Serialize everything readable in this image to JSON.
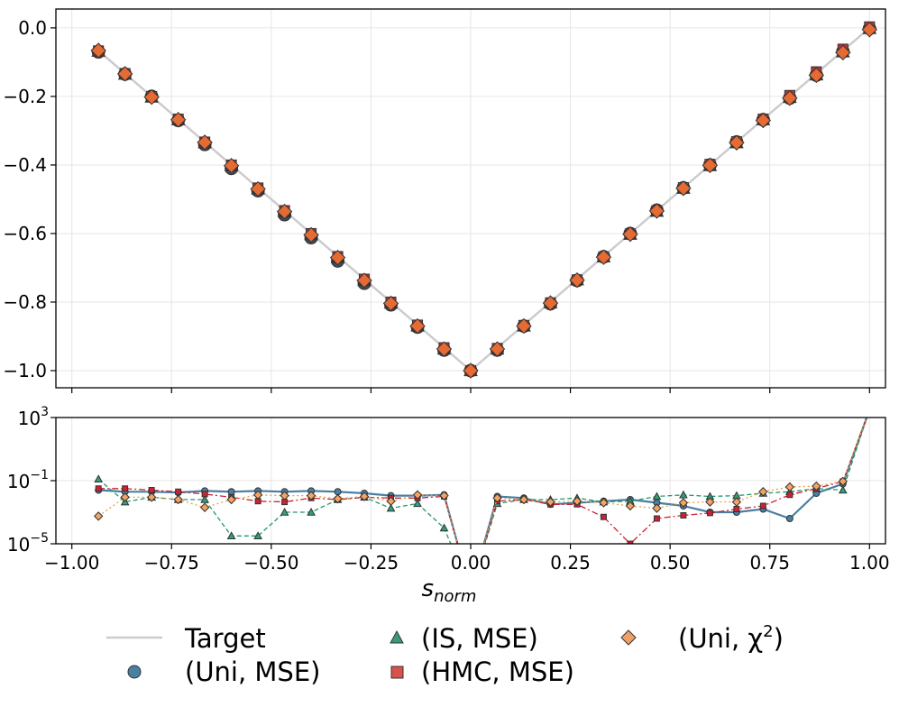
{
  "chart_data": [
    {
      "type": "line",
      "panel": "main",
      "xlim": [
        -1.04,
        1.04
      ],
      "ylim": [
        -1.05,
        0.055
      ],
      "yticks": [
        0.0,
        -0.2,
        -0.4,
        -0.6,
        -0.8,
        -1.0
      ],
      "ytick_labels": [
        "0.0",
        "−0.2",
        "−0.4",
        "−0.6",
        "−0.8",
        "−1.0"
      ],
      "grid": true,
      "x": [
        -0.9333,
        -0.8667,
        -0.8,
        -0.7333,
        -0.6667,
        -0.6,
        -0.5333,
        -0.4667,
        -0.4,
        -0.3333,
        -0.2667,
        -0.2,
        -0.1333,
        -0.0667,
        0.0,
        0.0667,
        0.1333,
        0.2,
        0.2667,
        0.3333,
        0.4,
        0.4667,
        0.5333,
        0.6,
        0.6667,
        0.7333,
        0.8,
        0.8667,
        0.9333,
        1.0
      ],
      "series": [
        {
          "name": "Target",
          "values": [
            -0.0667,
            -0.1333,
            -0.2,
            -0.2667,
            -0.3333,
            -0.4,
            -0.4667,
            -0.5333,
            -0.6,
            -0.6667,
            -0.7333,
            -0.8,
            -0.8667,
            -0.9333,
            -1.0,
            -0.9333,
            -0.8667,
            -0.8,
            -0.7333,
            -0.6667,
            -0.6,
            -0.5333,
            -0.4667,
            -0.4,
            -0.3333,
            -0.2667,
            -0.2,
            -0.1333,
            -0.0667,
            0.0
          ]
        },
        {
          "name": "(Uni, MSE)",
          "values": [
            -0.07,
            -0.135,
            -0.2,
            -0.27,
            -0.34,
            -0.41,
            -0.475,
            -0.545,
            -0.612,
            -0.68,
            -0.745,
            -0.808,
            -0.873,
            -0.94,
            -1.0,
            -0.94,
            -0.87,
            -0.805,
            -0.737,
            -0.668,
            -0.6,
            -0.532,
            -0.467,
            -0.4,
            -0.333,
            -0.268,
            -0.205,
            -0.138,
            -0.069,
            -0.002
          ]
        },
        {
          "name": "(IS, MSE)",
          "values": [
            -0.068,
            -0.135,
            -0.202,
            -0.268,
            -0.335,
            -0.402,
            -0.47,
            -0.537,
            -0.603,
            -0.67,
            -0.737,
            -0.803,
            -0.87,
            -0.937,
            -1.0,
            -0.937,
            -0.87,
            -0.802,
            -0.735,
            -0.668,
            -0.602,
            -0.535,
            -0.468,
            -0.402,
            -0.335,
            -0.268,
            -0.203,
            -0.137,
            -0.07,
            -0.002
          ]
        },
        {
          "name": "(HMC, MSE)",
          "values": [
            -0.067,
            -0.133,
            -0.2,
            -0.266,
            -0.333,
            -0.4,
            -0.467,
            -0.533,
            -0.6,
            -0.667,
            -0.733,
            -0.8,
            -0.867,
            -0.933,
            -1.0,
            -0.935,
            -0.868,
            -0.802,
            -0.735,
            -0.668,
            -0.601,
            -0.533,
            -0.466,
            -0.398,
            -0.332,
            -0.266,
            -0.197,
            -0.128,
            -0.062,
            0.003
          ]
        },
        {
          "name": "(Uni, χ²)",
          "values": [
            -0.066,
            -0.134,
            -0.202,
            -0.268,
            -0.334,
            -0.402,
            -0.47,
            -0.536,
            -0.604,
            -0.67,
            -0.737,
            -0.804,
            -0.87,
            -0.937,
            -1.0,
            -0.937,
            -0.87,
            -0.803,
            -0.736,
            -0.669,
            -0.602,
            -0.534,
            -0.468,
            -0.401,
            -0.335,
            -0.27,
            -0.205,
            -0.138,
            -0.072,
            -0.005
          ]
        }
      ]
    },
    {
      "type": "line",
      "panel": "error",
      "yscale": "log",
      "ylim_log10": [
        -5,
        3
      ],
      "yticks_log10": [
        3,
        -1,
        -5
      ],
      "ytick_labels": [
        {
          "base": "10",
          "exp": "3"
        },
        {
          "base": "10",
          "exp": "−1"
        },
        {
          "base": "10",
          "exp": "−5"
        }
      ],
      "xlim": [
        -1.04,
        1.04
      ],
      "xticks": [
        -1.0,
        -0.75,
        -0.5,
        -0.25,
        0.0,
        0.25,
        0.5,
        0.75,
        1.0
      ],
      "xtick_labels": [
        "−1.00",
        "−0.75",
        "−0.50",
        "−0.25",
        "0.00",
        "0.25",
        "0.50",
        "0.75",
        "1.00"
      ],
      "xlabel": {
        "base": "s",
        "sub": "norm"
      },
      "grid": true,
      "note": "error values given as log10; -8 denotes a drop below the axis",
      "x": [
        -0.9333,
        -0.8667,
        -0.8,
        -0.7333,
        -0.6667,
        -0.6,
        -0.5333,
        -0.4667,
        -0.4,
        -0.3333,
        -0.2667,
        -0.2,
        -0.1333,
        -0.0667,
        0.0,
        0.0667,
        0.1333,
        0.2,
        0.2667,
        0.3333,
        0.4,
        0.4667,
        0.5333,
        0.6,
        0.6667,
        0.7333,
        0.8,
        0.8667,
        0.9333,
        1.0
      ],
      "series": [
        {
          "name": "(Uni, MSE)",
          "values": [
            -1.6,
            -1.7,
            -1.7,
            -1.75,
            -1.65,
            -1.7,
            -1.65,
            -1.7,
            -1.65,
            -1.7,
            -1.8,
            -1.95,
            -1.95,
            -1.9,
            -8,
            -2.0,
            -2.1,
            -2.5,
            -2.4,
            -2.3,
            -2.2,
            -2.4,
            -2.6,
            -3.0,
            -3.0,
            -2.8,
            -3.4,
            -1.8,
            -1.2,
            3.5
          ]
        },
        {
          "name": "(IS, MSE)",
          "values": [
            -0.9,
            -2.35,
            -2.05,
            -2.2,
            -2.2,
            -4.5,
            -4.5,
            -3.0,
            -3.0,
            -2.2,
            -2.05,
            -2.75,
            -2.45,
            -4.0,
            -8,
            -2.45,
            -2.2,
            -2.2,
            -2.1,
            -2.35,
            -2.3,
            -2.0,
            -1.9,
            -2.0,
            -1.95,
            -1.8,
            -1.7,
            -1.5,
            -1.6,
            3.5
          ]
        },
        {
          "name": "(HMC, MSE)",
          "values": [
            -1.5,
            -1.5,
            -1.6,
            -1.7,
            -1.85,
            -2.05,
            -2.3,
            -2.35,
            -2.1,
            -2.2,
            -2.05,
            -2.1,
            -2.1,
            -2.0,
            -8,
            -2.3,
            -2.2,
            -2.5,
            -2.5,
            -3.3,
            -5.0,
            -3.4,
            -3.2,
            -3.05,
            -2.8,
            -2.6,
            -1.9,
            -1.5,
            -1.05,
            3.5
          ]
        },
        {
          "name": "(Uni, χ²)",
          "values": [
            -3.25,
            -2.05,
            -2.05,
            -2.2,
            -2.7,
            -2.2,
            -1.9,
            -1.95,
            -1.95,
            -2.15,
            -2.0,
            -2.3,
            -1.9,
            -1.95,
            -8,
            -2.1,
            -2.2,
            -2.35,
            -2.3,
            -2.4,
            -2.6,
            -2.75,
            -2.4,
            -2.35,
            -2.35,
            -1.7,
            -1.4,
            -1.35,
            -1.05,
            3.5
          ]
        }
      ]
    }
  ],
  "legend": {
    "placement": "bottom-center",
    "entries": [
      {
        "label": "Target",
        "marker": "line",
        "color": "#cccccc"
      },
      {
        "label": "(Uni, MSE)",
        "marker": "circle",
        "color": "#4a7fa3"
      },
      {
        "label": "(IS, MSE)",
        "marker": "triangle",
        "color": "#3a9a76"
      },
      {
        "label": "(HMC, MSE)",
        "marker": "square",
        "color": "#d9514b"
      },
      {
        "label": "(Uni, χ²)",
        "marker": "diamond",
        "color": "#f0a067",
        "label_base": "(Uni, χ",
        "label_sup": "2",
        "label_tail": ")"
      }
    ]
  },
  "colors": {
    "uni_mse": "#4a7fa3",
    "is_mse": "#229966",
    "hmc_mse": "#cc2233",
    "uni_chi2": "#e8a040",
    "chi2_fill": "#f4a362",
    "main_fill": "#e66a33",
    "target": "#cccccc"
  }
}
